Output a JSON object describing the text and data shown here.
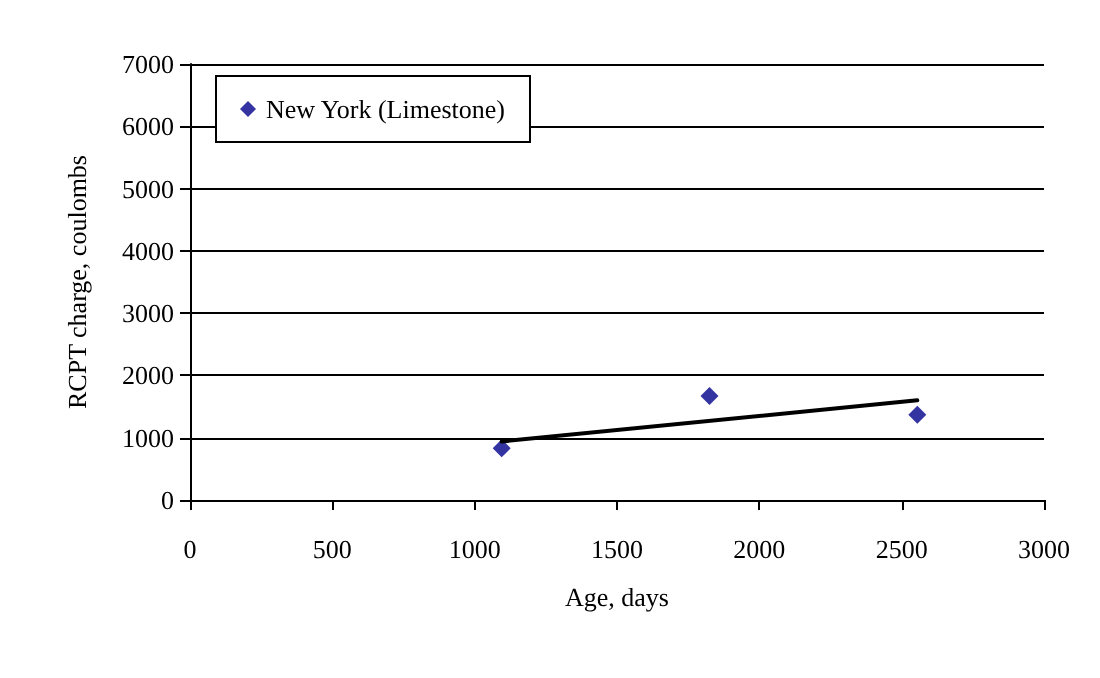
{
  "chart_data": {
    "type": "scatter",
    "xlabel": "Age, days",
    "ylabel": "RCPT charge, coulombs",
    "series": [
      {
        "name": "New York (Limestone)",
        "color": "#00008b",
        "x": [
          1095,
          1825,
          2555
        ],
        "values": [
          830,
          1670,
          1370
        ],
        "marker": "diamond"
      },
      {
        "type": "line",
        "color": "#000000",
        "x": [
          1095,
          2555
        ],
        "values": [
          940,
          1600
        ],
        "marker": "none",
        "line_style": "solid"
      }
    ],
    "xlim": [
      0,
      3000
    ],
    "xticks": [
      0,
      500,
      1000,
      1500,
      2000,
      2500,
      3000
    ],
    "ylim": [
      0,
      7000
    ],
    "yticks": [
      0,
      1000,
      2000,
      3000,
      4000,
      5000,
      6000,
      7000
    ],
    "grid": "y",
    "legend": "top left"
  }
}
